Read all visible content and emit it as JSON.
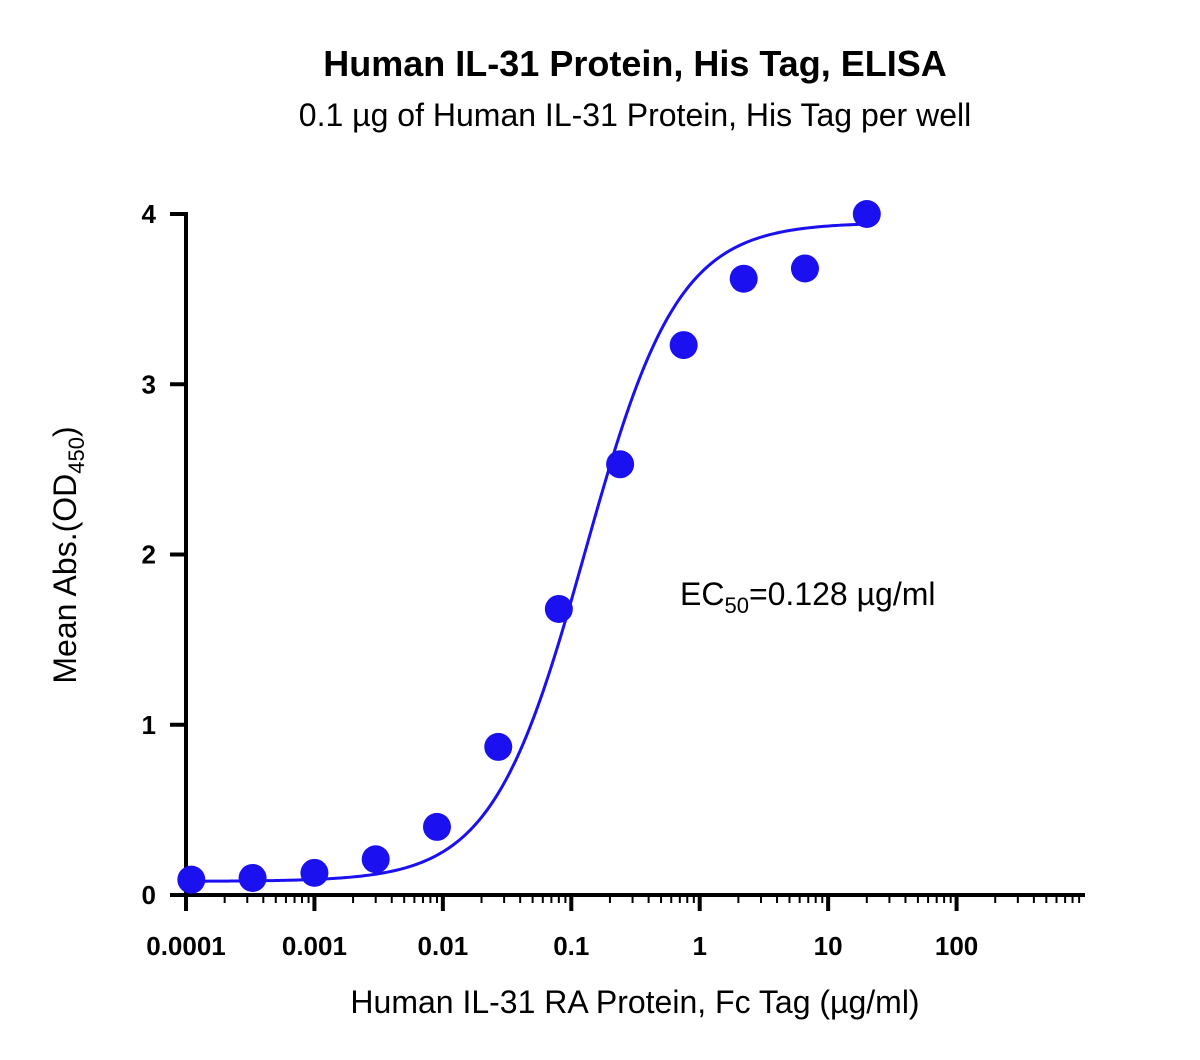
{
  "chart_data": {
    "type": "scatter",
    "title": "Human IL-31 Protein, His Tag, ELISA",
    "subtitle": "0.1 µg of Human IL-31 Protein, His Tag per well",
    "xlabel": "Human IL-31 RA Protein, Fc Tag (µg/ml)",
    "ylabel_main": "Mean Abs.(OD",
    "ylabel_sub": "450",
    "ylabel_close": ")",
    "x_scale": "log",
    "xlim": [
      0.0001,
      1000
    ],
    "ylim": [
      0,
      4
    ],
    "x_ticks": [
      0.0001,
      0.001,
      0.01,
      0.1,
      1,
      10,
      100
    ],
    "x_tick_labels": [
      "0.0001",
      "0.001",
      "0.01",
      "0.1",
      "1",
      "10",
      "100"
    ],
    "y_ticks": [
      0,
      1,
      2,
      3,
      4
    ],
    "y_tick_labels": [
      "0",
      "1",
      "2",
      "3",
      "4"
    ],
    "grid": false,
    "legend": "none",
    "series": [
      {
        "x": [
          0.00011,
          0.00033,
          0.001,
          0.003,
          0.009,
          0.027,
          0.08,
          0.24,
          0.75,
          2.2,
          6.6,
          20
        ],
        "y": [
          0.09,
          0.1,
          0.13,
          0.21,
          0.4,
          0.87,
          1.68,
          2.53,
          3.23,
          3.62,
          3.68,
          4.0
        ]
      }
    ],
    "fit": {
      "type": "4PL",
      "bottom": 0.08,
      "top": 3.95,
      "ec50": 0.128,
      "hill": 1.2,
      "x_range": [
        0.00011,
        20
      ]
    },
    "annotation": {
      "prefix": "EC",
      "sub": "50",
      "suffix": "=0.128 µg/ml"
    },
    "colors": {
      "series": "#1a10f0",
      "axis": "#000000"
    }
  }
}
